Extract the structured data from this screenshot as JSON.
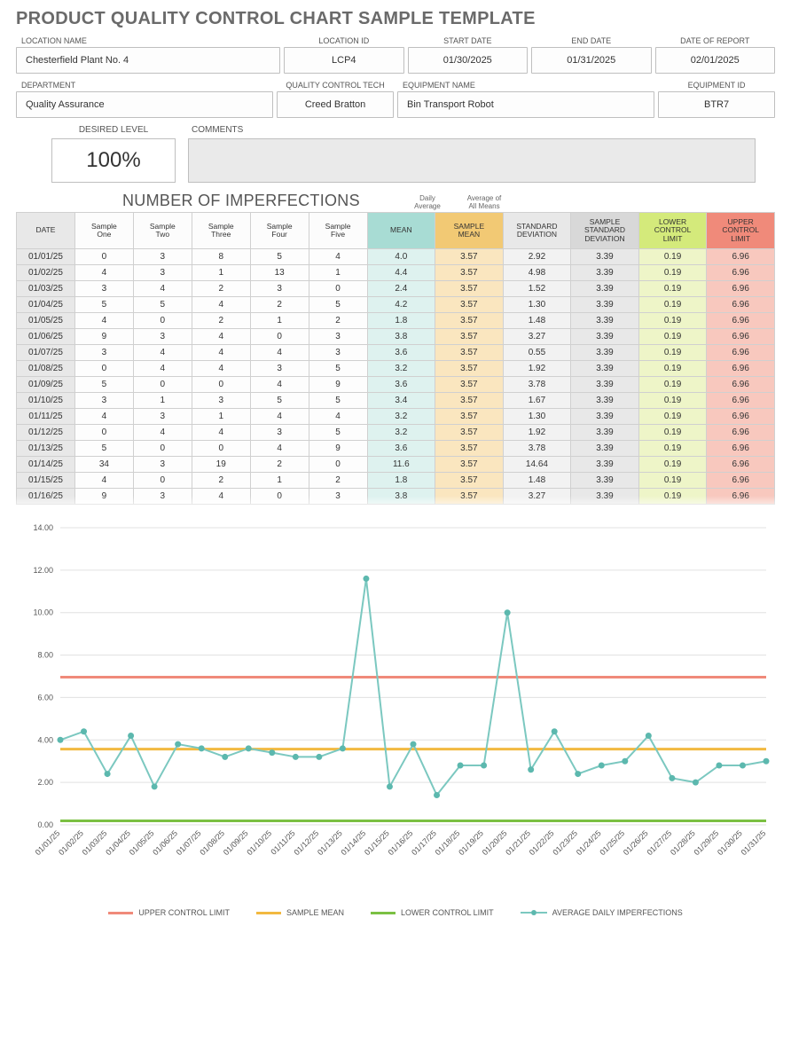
{
  "title": "PRODUCT QUALITY CONTROL CHART SAMPLE TEMPLATE",
  "meta1": {
    "cols": [
      {
        "label": "LOCATION NAME",
        "value": "Chesterfield Plant No. 4",
        "flex": 2.2,
        "align": "left"
      },
      {
        "label": "LOCATION ID",
        "value": "LCP4",
        "flex": 1,
        "align": "center"
      },
      {
        "label": "START DATE",
        "value": "01/30/2025",
        "flex": 1,
        "align": "center"
      },
      {
        "label": "END DATE",
        "value": "01/31/2025",
        "flex": 1,
        "align": "center"
      },
      {
        "label": "DATE OF REPORT",
        "value": "02/01/2025",
        "flex": 1,
        "align": "center"
      }
    ]
  },
  "meta2": {
    "cols": [
      {
        "label": "DEPARTMENT",
        "value": "Quality Assurance",
        "flex": 2.2,
        "align": "left"
      },
      {
        "label": "QUALITY CONTROL TECH",
        "value": "Creed Bratton",
        "flex": 1,
        "align": "center"
      },
      {
        "label": "EQUIPMENT NAME",
        "value": "Bin Transport Robot",
        "flex": 2.2,
        "align": "left"
      },
      {
        "label": "EQUIPMENT ID",
        "value": "BTR7",
        "flex": 1,
        "align": "center"
      }
    ]
  },
  "level": {
    "label": "DESIRED LEVEL",
    "value": "100%"
  },
  "comments_label": "COMMENTS",
  "section_title": "NUMBER OF IMPERFECTIONS",
  "sublabels": {
    "daily": "Daily\nAverage",
    "allmeans": "Average of\nAll Means"
  },
  "headers": [
    "DATE",
    "Sample\nOne",
    "Sample\nTwo",
    "Sample\nThree",
    "Sample\nFour",
    "Sample\nFive",
    "MEAN",
    "SAMPLE\nMEAN",
    "STANDARD\nDEVIATION",
    "SAMPLE\nSTANDARD\nDEVIATION",
    "LOWER\nCONTROL\nLIMIT",
    "UPPER\nCONTROL\nLIMIT"
  ],
  "header_classes": [
    "h-date",
    "h-samp",
    "h-samp",
    "h-samp",
    "h-samp",
    "h-samp",
    "h-mean",
    "h-smean",
    "h-std",
    "h-sstd",
    "h-lcl",
    "h-ucl"
  ],
  "cell_classes": [
    "c-date",
    "c-samp",
    "c-samp",
    "c-samp",
    "c-samp",
    "c-samp",
    "c-mean",
    "c-smean",
    "c-std",
    "c-sstd",
    "c-lcl",
    "c-ucl"
  ],
  "constants": {
    "sample_mean": "3.57",
    "sample_std": "3.39",
    "lcl": "0.19",
    "ucl": "6.96"
  },
  "rows": [
    {
      "date": "01/01/25",
      "s": [
        0,
        3,
        8,
        5,
        4
      ],
      "mean": "4.0",
      "std": "2.92"
    },
    {
      "date": "01/02/25",
      "s": [
        4,
        3,
        1,
        13,
        1
      ],
      "mean": "4.4",
      "std": "4.98"
    },
    {
      "date": "01/03/25",
      "s": [
        3,
        4,
        2,
        3,
        0
      ],
      "mean": "2.4",
      "std": "1.52"
    },
    {
      "date": "01/04/25",
      "s": [
        5,
        5,
        4,
        2,
        5
      ],
      "mean": "4.2",
      "std": "1.30"
    },
    {
      "date": "01/05/25",
      "s": [
        4,
        0,
        2,
        1,
        2
      ],
      "mean": "1.8",
      "std": "1.48"
    },
    {
      "date": "01/06/25",
      "s": [
        9,
        3,
        4,
        0,
        3
      ],
      "mean": "3.8",
      "std": "3.27"
    },
    {
      "date": "01/07/25",
      "s": [
        3,
        4,
        4,
        4,
        3
      ],
      "mean": "3.6",
      "std": "0.55"
    },
    {
      "date": "01/08/25",
      "s": [
        0,
        4,
        4,
        3,
        5
      ],
      "mean": "3.2",
      "std": "1.92"
    },
    {
      "date": "01/09/25",
      "s": [
        5,
        0,
        0,
        4,
        9
      ],
      "mean": "3.6",
      "std": "3.78"
    },
    {
      "date": "01/10/25",
      "s": [
        3,
        1,
        3,
        5,
        5
      ],
      "mean": "3.4",
      "std": "1.67"
    },
    {
      "date": "01/11/25",
      "s": [
        4,
        3,
        1,
        4,
        4
      ],
      "mean": "3.2",
      "std": "1.30"
    },
    {
      "date": "01/12/25",
      "s": [
        0,
        4,
        4,
        3,
        5
      ],
      "mean": "3.2",
      "std": "1.92"
    },
    {
      "date": "01/13/25",
      "s": [
        5,
        0,
        0,
        4,
        9
      ],
      "mean": "3.6",
      "std": "3.78"
    },
    {
      "date": "01/14/25",
      "s": [
        34,
        3,
        19,
        2,
        0
      ],
      "mean": "11.6",
      "std": "14.64"
    },
    {
      "date": "01/15/25",
      "s": [
        4,
        0,
        2,
        1,
        2
      ],
      "mean": "1.8",
      "std": "1.48"
    },
    {
      "date": "01/16/25",
      "s": [
        9,
        3,
        4,
        0,
        3
      ],
      "mean": "3.8",
      "std": "3.27"
    }
  ],
  "chart": {
    "ylim": [
      0,
      14
    ],
    "ytick_step": 2,
    "ucl": 6.96,
    "lcl": 0.19,
    "sample_mean": 3.57,
    "colors": {
      "grid": "#e0e0e0",
      "ucl": "#f08a7a",
      "smean": "#f2b940",
      "lcl": "#7bc043",
      "daily_line": "#7bc8c0",
      "daily_dot": "#5cb8ae",
      "bg": "#ffffff"
    },
    "x_labels": [
      "01/01/25",
      "01/02/25",
      "01/03/25",
      "01/04/25",
      "01/05/25",
      "01/06/25",
      "01/07/25",
      "01/08/25",
      "01/09/25",
      "01/10/25",
      "01/11/25",
      "01/12/25",
      "01/13/25",
      "01/14/25",
      "01/15/25",
      "01/16/25",
      "01/17/25",
      "01/18/25",
      "01/19/25",
      "01/20/25",
      "01/21/25",
      "01/22/25",
      "01/23/25",
      "01/24/25",
      "01/25/25",
      "01/26/25",
      "01/27/25",
      "01/28/25",
      "01/29/25",
      "01/30/25",
      "01/31/25"
    ],
    "daily": [
      4.0,
      4.4,
      2.4,
      4.2,
      1.8,
      3.8,
      3.6,
      3.2,
      3.6,
      3.4,
      3.2,
      3.2,
      3.6,
      11.6,
      1.8,
      3.8,
      1.4,
      2.8,
      2.8,
      10.0,
      2.6,
      4.4,
      2.4,
      2.8,
      3.0,
      4.2,
      2.2,
      2.0,
      2.8,
      2.8,
      3.0
    ],
    "legend": [
      "UPPER CONTROL LIMIT",
      "SAMPLE MEAN",
      "LOWER CONTROL LIMIT",
      "AVERAGE DAILY IMPERFECTIONS"
    ]
  }
}
